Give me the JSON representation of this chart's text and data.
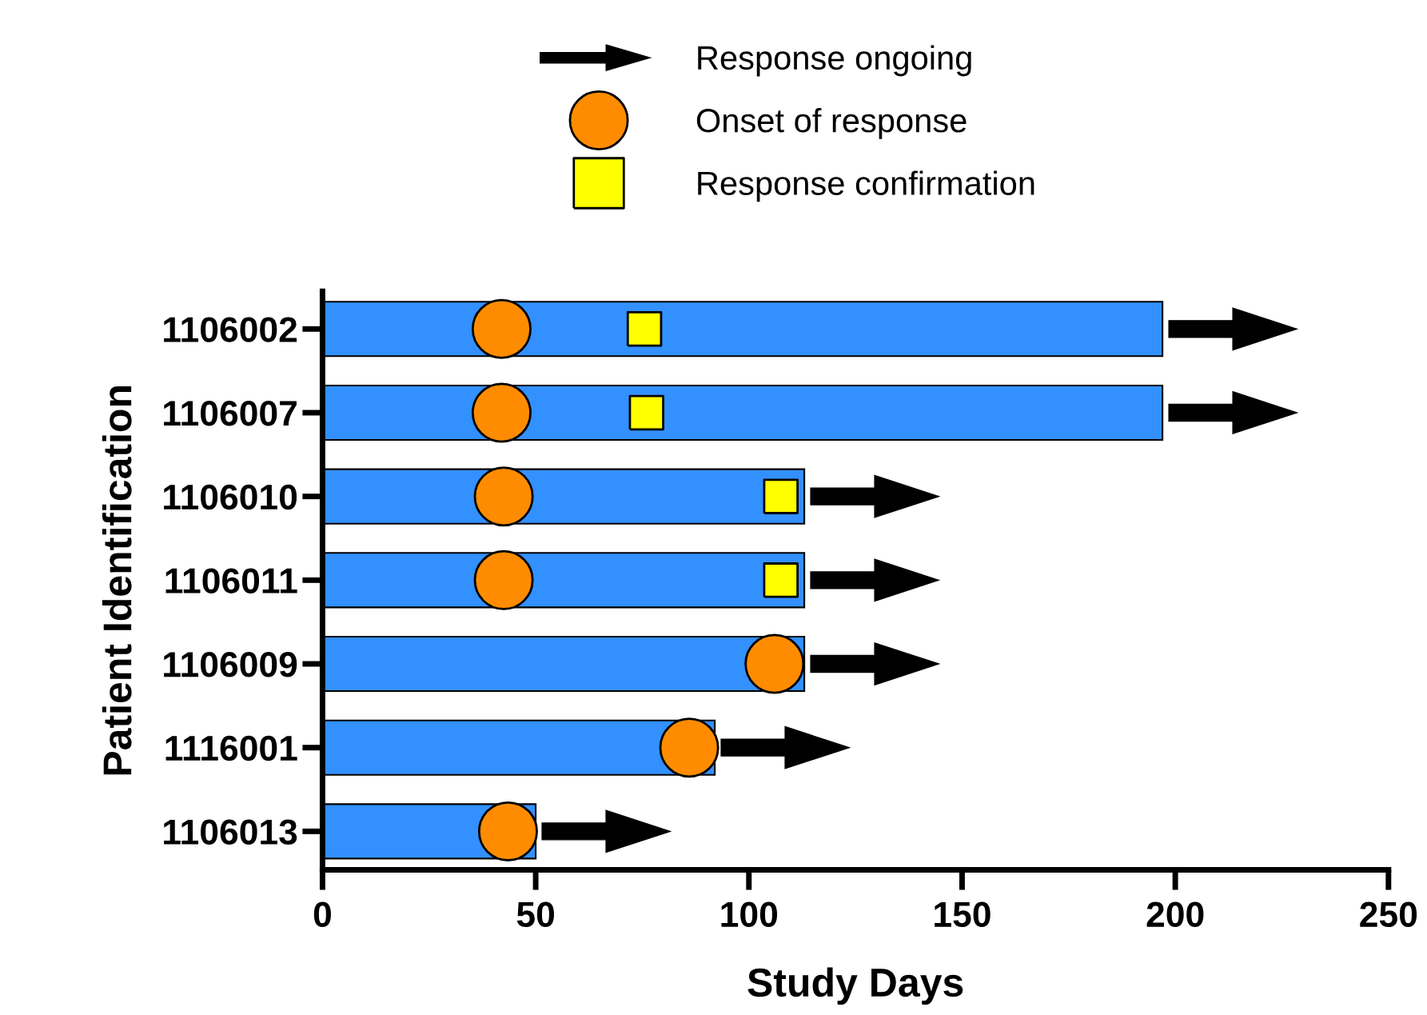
{
  "chart_data": {
    "type": "bar",
    "orientation": "horizontal",
    "xlabel": "Study Days",
    "ylabel": "Patient Identification",
    "categories": [
      "1106002",
      "1106007",
      "1106010",
      "1106011",
      "1106009",
      "1116001",
      "1106013"
    ],
    "xlim": [
      0,
      250
    ],
    "xticks": [
      0,
      50,
      100,
      150,
      200,
      250
    ],
    "grid": false,
    "legend": "top",
    "annotations": [
      "Response ongoing"
    ],
    "series": [
      {
        "color": "#3390ff",
        "values": [
          197,
          197,
          113,
          113,
          113,
          92,
          50
        ]
      },
      {
        "type": "scatter",
        "name": "Onset of response",
        "color": "#ff8c00",
        "marker": "circle",
        "values": [
          42,
          42,
          42.5,
          42.5,
          106,
          86,
          43.5
        ]
      },
      {
        "type": "scatter",
        "name": "Response confirmation",
        "color": "#ffff00",
        "marker": "square",
        "values": [
          75.5,
          76,
          107.5,
          107.5,
          null,
          null,
          null
        ]
      }
    ]
  }
}
